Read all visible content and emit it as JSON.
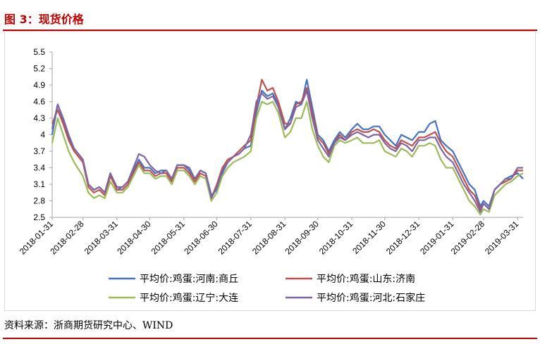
{
  "figure": {
    "title": "图 3：现货价格",
    "source": "资料来源：浙商期货研究中心、WIND"
  },
  "chart_data": {
    "type": "line",
    "title": "",
    "xlabel": "",
    "ylabel": "",
    "ylim": [
      2.5,
      5.5
    ],
    "yticks": [
      "5.5",
      "5.2",
      "4.9",
      "4.6",
      "4.3",
      "4",
      "3.7",
      "3.4",
      "3.1",
      "2.8",
      "2.5"
    ],
    "xticks": [
      "2018-01-31",
      "2018-02-28",
      "2018-03-31",
      "2018-04-30",
      "2018-05-31",
      "2018-06-30",
      "2018-07-31",
      "2018-08-31",
      "2018-09-30",
      "2018-10-31",
      "2018-11-30",
      "2018-12-31",
      "2019-01-31",
      "2019-02-28",
      "2019-03-31"
    ],
    "grid": false,
    "legend": "bottom",
    "x": [
      "2018-01-31",
      "2018-02-05",
      "2018-02-10",
      "2018-02-15",
      "2018-02-20",
      "2018-02-28",
      "2018-03-05",
      "2018-03-10",
      "2018-03-15",
      "2018-03-20",
      "2018-03-25",
      "2018-03-31",
      "2018-04-05",
      "2018-04-10",
      "2018-04-15",
      "2018-04-20",
      "2018-04-25",
      "2018-04-30",
      "2018-05-05",
      "2018-05-10",
      "2018-05-15",
      "2018-05-20",
      "2018-05-25",
      "2018-05-31",
      "2018-06-05",
      "2018-06-10",
      "2018-06-15",
      "2018-06-20",
      "2018-06-25",
      "2018-06-30",
      "2018-07-05",
      "2018-07-10",
      "2018-07-15",
      "2018-07-20",
      "2018-07-25",
      "2018-07-31",
      "2018-08-05",
      "2018-08-10",
      "2018-08-15",
      "2018-08-20",
      "2018-08-25",
      "2018-08-31",
      "2018-09-05",
      "2018-09-10",
      "2018-09-15",
      "2018-09-20",
      "2018-09-25",
      "2018-09-30",
      "2018-10-05",
      "2018-10-10",
      "2018-10-15",
      "2018-10-20",
      "2018-10-25",
      "2018-10-31",
      "2018-11-05",
      "2018-11-10",
      "2018-11-15",
      "2018-11-20",
      "2018-11-25",
      "2018-11-30",
      "2018-12-05",
      "2018-12-10",
      "2018-12-15",
      "2018-12-20",
      "2018-12-25",
      "2018-12-31",
      "2019-01-05",
      "2019-01-10",
      "2019-01-15",
      "2019-01-20",
      "2019-01-25",
      "2019-01-31",
      "2019-02-05",
      "2019-02-10",
      "2019-02-15",
      "2019-02-20",
      "2019-02-25",
      "2019-02-28",
      "2019-03-05",
      "2019-03-10",
      "2019-03-15",
      "2019-03-20",
      "2019-03-25",
      "2019-03-31",
      "2019-04-05"
    ],
    "series": [
      {
        "name": "平均价:鸡蛋:河南:商丘",
        "color": "#4472c4",
        "values": [
          4.0,
          4.55,
          4.25,
          3.95,
          3.75,
          3.55,
          3.1,
          3.0,
          3.05,
          2.95,
          3.3,
          3.0,
          3.05,
          3.15,
          3.35,
          3.55,
          3.4,
          3.4,
          3.3,
          3.35,
          3.35,
          3.2,
          3.45,
          3.45,
          3.35,
          3.2,
          3.35,
          3.3,
          2.9,
          3.0,
          3.3,
          3.5,
          3.6,
          3.65,
          3.75,
          3.8,
          4.4,
          4.8,
          4.7,
          4.75,
          4.55,
          4.1,
          4.3,
          4.6,
          4.55,
          5.0,
          4.5,
          4.0,
          3.9,
          3.7,
          3.9,
          4.05,
          3.95,
          4.1,
          4.2,
          4.1,
          4.1,
          4.15,
          4.15,
          4.0,
          3.9,
          3.8,
          4.0,
          3.95,
          3.9,
          4.05,
          4.05,
          4.2,
          4.25,
          3.9,
          3.8,
          3.7,
          3.5,
          3.3,
          3.1,
          3.0,
          2.7,
          2.8,
          2.7,
          3.0,
          3.1,
          3.2,
          3.25,
          3.3,
          3.2
        ]
      },
      {
        "name": "平均价:鸡蛋:山东:济南",
        "color": "#c0504d",
        "values": [
          4.2,
          4.45,
          4.2,
          3.9,
          3.7,
          3.5,
          3.05,
          2.95,
          3.0,
          2.9,
          3.25,
          3.0,
          3.0,
          3.1,
          3.3,
          3.5,
          3.35,
          3.35,
          3.25,
          3.3,
          3.3,
          3.15,
          3.4,
          3.4,
          3.3,
          3.15,
          3.3,
          3.25,
          2.85,
          3.1,
          3.4,
          3.55,
          3.6,
          3.7,
          3.8,
          3.9,
          4.5,
          5.0,
          4.8,
          4.85,
          4.6,
          4.2,
          4.2,
          4.55,
          4.6,
          4.85,
          4.4,
          3.95,
          3.85,
          3.65,
          3.85,
          4.0,
          3.9,
          4.05,
          4.1,
          4.05,
          4.05,
          4.1,
          4.05,
          3.9,
          3.8,
          3.75,
          3.9,
          3.85,
          3.8,
          3.95,
          3.95,
          4.0,
          4.05,
          3.85,
          3.7,
          3.6,
          3.4,
          3.2,
          3.0,
          2.9,
          2.65,
          2.75,
          2.65,
          3.0,
          3.1,
          3.15,
          3.2,
          3.35,
          3.35
        ]
      },
      {
        "name": "平均价:鸡蛋:辽宁:大连",
        "color": "#9bbb59",
        "values": [
          3.85,
          4.3,
          4.0,
          3.7,
          3.5,
          3.25,
          2.95,
          2.85,
          2.9,
          2.85,
          3.15,
          2.95,
          2.95,
          3.05,
          3.25,
          3.45,
          3.3,
          3.3,
          3.2,
          3.25,
          3.25,
          3.1,
          3.35,
          3.35,
          3.25,
          3.1,
          3.25,
          3.2,
          2.8,
          2.95,
          3.25,
          3.4,
          3.5,
          3.55,
          3.6,
          3.7,
          4.3,
          4.6,
          4.55,
          4.6,
          4.4,
          3.95,
          4.05,
          4.3,
          4.3,
          4.6,
          4.1,
          3.8,
          3.6,
          3.5,
          3.8,
          3.9,
          3.85,
          3.9,
          3.95,
          3.85,
          3.85,
          3.85,
          3.9,
          3.7,
          3.65,
          3.6,
          3.75,
          3.7,
          3.6,
          3.8,
          3.8,
          3.85,
          3.8,
          3.55,
          3.4,
          3.4,
          3.2,
          3.0,
          2.8,
          2.7,
          2.55,
          2.65,
          2.6,
          2.9,
          3.0,
          3.1,
          3.15,
          3.25,
          3.3
        ]
      },
      {
        "name": "平均价:鸡蛋:河北:石家庄",
        "color": "#8064a2",
        "values": [
          4.1,
          4.55,
          4.3,
          4.0,
          3.75,
          3.55,
          3.1,
          3.0,
          3.05,
          2.95,
          3.3,
          3.05,
          3.05,
          3.15,
          3.4,
          3.65,
          3.6,
          3.45,
          3.35,
          3.3,
          3.35,
          3.2,
          3.45,
          3.45,
          3.4,
          3.2,
          3.35,
          3.3,
          2.85,
          3.05,
          3.35,
          3.5,
          3.6,
          3.65,
          3.75,
          4.0,
          4.6,
          4.75,
          4.65,
          4.7,
          4.5,
          4.1,
          4.2,
          4.5,
          4.55,
          4.8,
          4.3,
          3.9,
          3.75,
          3.6,
          3.85,
          3.95,
          3.9,
          4.0,
          4.05,
          4.0,
          3.95,
          4.0,
          4.0,
          3.85,
          3.75,
          3.7,
          3.85,
          3.8,
          3.7,
          3.9,
          3.9,
          3.95,
          3.95,
          3.75,
          3.6,
          3.5,
          3.3,
          3.1,
          2.95,
          2.8,
          2.6,
          2.75,
          2.65,
          3.0,
          3.1,
          3.2,
          3.2,
          3.4,
          3.4
        ]
      }
    ]
  }
}
